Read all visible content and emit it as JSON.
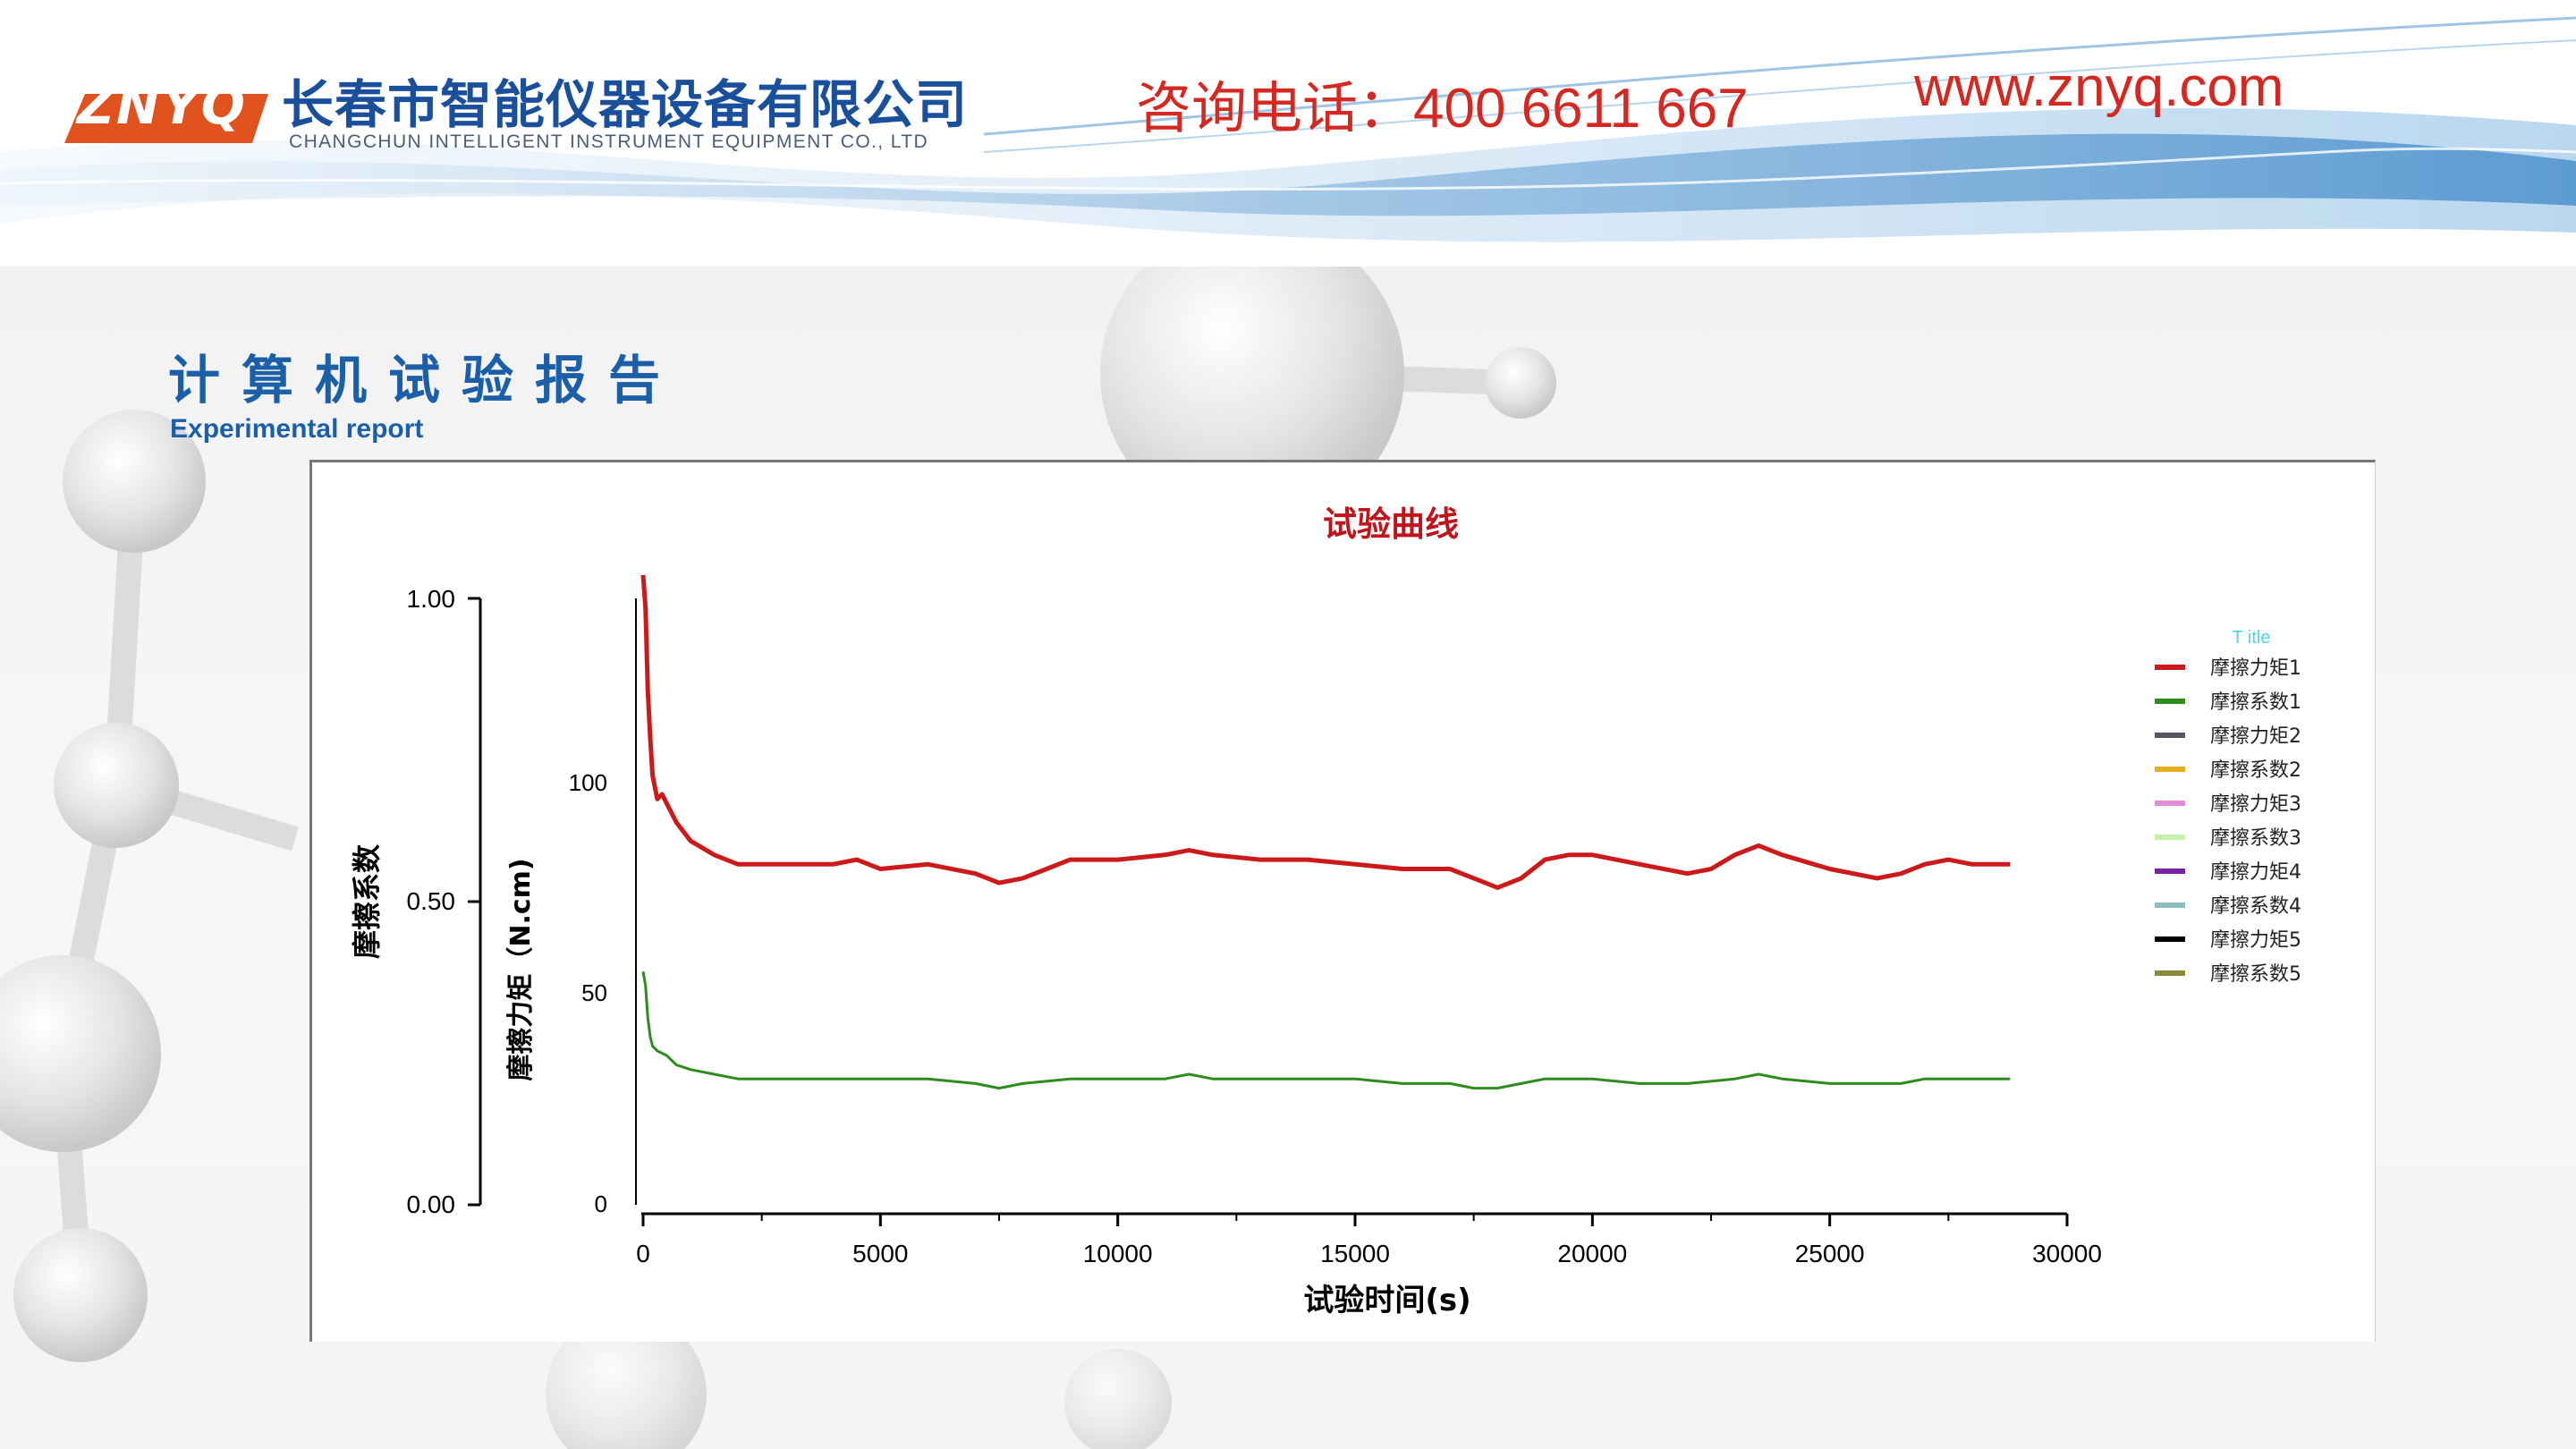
{
  "header": {
    "logo_text": "ZNYQ",
    "company_cn": "长春市智能仪器设备有限公司",
    "company_en": "CHANGCHUN INTELLIGENT INSTRUMENT EQUIPMENT CO., LTD",
    "phone": "咨询电话：400 6611 667",
    "website": "www.znyq.com"
  },
  "section": {
    "title": "计算机试验报告",
    "subtitle": "Experimental report"
  },
  "colors": {
    "brand_blue": "#1a5fa8",
    "brand_red": "#d42820",
    "series_torque1": "#cc1a1a",
    "series_coef1": "#2e8b1e"
  },
  "chart_data": {
    "type": "line",
    "title": "试验曲线",
    "xlabel": "试验时间(s)",
    "ylabel_left": "摩擦系数",
    "ylabel_right": "摩擦力矩（N.cm)",
    "xlim": [
      0,
      30000
    ],
    "x_ticks": [
      "0",
      "5000",
      "10000",
      "15000",
      "20000",
      "25000",
      "30000"
    ],
    "y_left_lim": [
      0,
      1
    ],
    "y_left_ticks": [
      "0.00",
      "0.50",
      "1.00"
    ],
    "y_right_lim": [
      0,
      130
    ],
    "y_right_ticks": [
      "0",
      "50",
      "100"
    ],
    "legend_title": "T itle",
    "legend_position": "right",
    "legend": [
      {
        "name": "摩擦力矩1",
        "color": "#cc1a1a"
      },
      {
        "name": "摩擦系数1",
        "color": "#2e8b1e"
      },
      {
        "name": "摩擦力矩2",
        "color": "#555566"
      },
      {
        "name": "摩擦系数2",
        "color": "#e8b020"
      },
      {
        "name": "摩擦力矩3",
        "color": "#e58ad6"
      },
      {
        "name": "摩擦系数3",
        "color": "#c6f0a8"
      },
      {
        "name": "摩擦力矩4",
        "color": "#7a1fa8"
      },
      {
        "name": "摩擦系数4",
        "color": "#8cc0c0"
      },
      {
        "name": "摩擦力矩5",
        "color": "#000000"
      },
      {
        "name": "摩擦系数5",
        "color": "#8a8a3a"
      }
    ],
    "series": [
      {
        "name": "摩擦力矩1",
        "axis": "right",
        "x": [
          0,
          50,
          100,
          150,
          200,
          300,
          400,
          500,
          700,
          1000,
          1500,
          2000,
          3000,
          4000,
          4500,
          5000,
          6000,
          7000,
          7500,
          8000,
          8500,
          9000,
          10000,
          11000,
          11500,
          12000,
          13000,
          14000,
          15000,
          16000,
          17000,
          17500,
          18000,
          18500,
          19000,
          19500,
          20000,
          21000,
          22000,
          22500,
          23000,
          23500,
          24000,
          25000,
          26000,
          26500,
          27000,
          27500,
          28000,
          28800
        ],
        "y": [
          135,
          128,
          110,
          100,
          92,
          87,
          88,
          86,
          82,
          78,
          75,
          73,
          73,
          73,
          74,
          72,
          73,
          71,
          69,
          70,
          72,
          74,
          74,
          75,
          76,
          75,
          74,
          74,
          73,
          72,
          72,
          70,
          68,
          70,
          74,
          75,
          75,
          73,
          71,
          72,
          75,
          77,
          75,
          72,
          70,
          71,
          73,
          74,
          73,
          73
        ]
      },
      {
        "name": "摩擦系数1",
        "axis": "right",
        "x": [
          0,
          50,
          100,
          150,
          200,
          300,
          500,
          700,
          1000,
          1500,
          2000,
          3000,
          4000,
          5000,
          6000,
          7000,
          7500,
          8000,
          9000,
          10000,
          11000,
          11500,
          12000,
          13000,
          14000,
          15000,
          16000,
          17000,
          17500,
          18000,
          18500,
          19000,
          20000,
          21000,
          22000,
          23000,
          23500,
          24000,
          25000,
          26000,
          26500,
          27000,
          28000,
          28800
        ],
        "y": [
          50,
          47,
          40,
          36,
          34,
          33,
          32,
          30,
          29,
          28,
          27,
          27,
          27,
          27,
          27,
          26,
          25,
          26,
          27,
          27,
          27,
          28,
          27,
          27,
          27,
          27,
          26,
          26,
          25,
          25,
          26,
          27,
          27,
          26,
          26,
          27,
          28,
          27,
          26,
          26,
          26,
          27,
          27,
          27
        ]
      }
    ]
  }
}
